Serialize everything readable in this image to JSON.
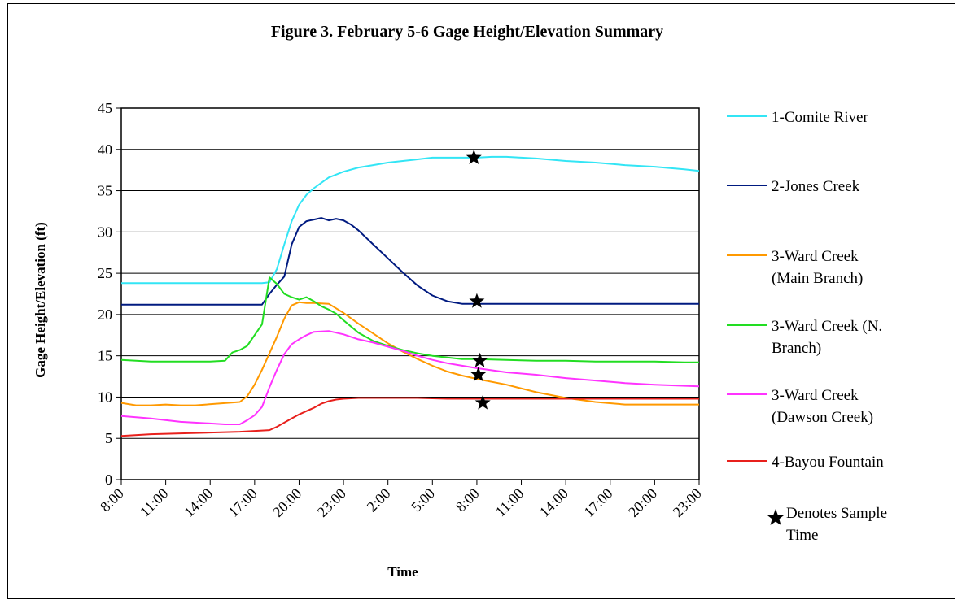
{
  "chart_data": {
    "type": "line",
    "title": "Figure 3. February 5-6 Gage Height/Elevation Summary",
    "xlabel": "Time",
    "ylabel": "Gage Height/Elevation (ft)",
    "ylim": [
      0,
      45
    ],
    "y_ticks": [
      0,
      5,
      10,
      15,
      20,
      25,
      30,
      35,
      40,
      45
    ],
    "x_tick_labels": [
      "8:00",
      "11:00",
      "14:00",
      "17:00",
      "20:00",
      "23:00",
      "2:00",
      "5:00",
      "8:00",
      "11:00",
      "14:00",
      "17:00",
      "20:00",
      "23:00"
    ],
    "x_unit": "hours from Feb 5 8:00",
    "xlim": [
      0,
      39
    ],
    "grid": "horizontal",
    "legend_position": "right",
    "series": [
      {
        "name": "1-Comite River",
        "color": "#33e5f5",
        "x": [
          0,
          9.5,
          10,
          10.5,
          11,
          11.5,
          12,
          12.5,
          13,
          14,
          15,
          16,
          17,
          18,
          19,
          20,
          21,
          22,
          23,
          24,
          25,
          26,
          27,
          28,
          30,
          32,
          34,
          36,
          38,
          39
        ],
        "y": [
          23.8,
          23.8,
          23.9,
          25.5,
          28.5,
          31.3,
          33.3,
          34.5,
          35.3,
          36.6,
          37.3,
          37.8,
          38.1,
          38.4,
          38.6,
          38.8,
          39.0,
          39.0,
          39.0,
          39.0,
          39.1,
          39.1,
          39.0,
          38.9,
          38.6,
          38.4,
          38.1,
          37.9,
          37.6,
          37.4
        ]
      },
      {
        "name": "2-Jones Creek",
        "color": "#001a80",
        "x": [
          0,
          9.5,
          10,
          10.5,
          11,
          11.5,
          12,
          12.5,
          13,
          13.5,
          14,
          14.5,
          15,
          15.5,
          16,
          17,
          18,
          19,
          20,
          21,
          22,
          23,
          24,
          25,
          30,
          39
        ],
        "y": [
          21.2,
          21.2,
          22.5,
          23.6,
          24.6,
          28.5,
          30.6,
          31.3,
          31.5,
          31.7,
          31.4,
          31.6,
          31.4,
          30.9,
          30.2,
          28.5,
          26.8,
          25.1,
          23.5,
          22.3,
          21.6,
          21.3,
          21.3,
          21.3,
          21.3,
          21.3
        ]
      },
      {
        "name": "3-Ward Creek (Main Branch)",
        "color": "#ff9900",
        "x": [
          0,
          1,
          2,
          3,
          4,
          5,
          8,
          8.5,
          9,
          9.5,
          10,
          10.5,
          11,
          11.5,
          12,
          12.5,
          13,
          14,
          15,
          16,
          17,
          18,
          19,
          20,
          21,
          22,
          23,
          24,
          26,
          28,
          30,
          32,
          34,
          36,
          39
        ],
        "y": [
          9.3,
          9.0,
          9.0,
          9.1,
          9.0,
          9.0,
          9.4,
          10.1,
          11.5,
          13.3,
          15.3,
          17.3,
          19.5,
          21.1,
          21.5,
          21.4,
          21.4,
          21.3,
          20.2,
          18.9,
          17.7,
          16.5,
          15.5,
          14.6,
          13.8,
          13.1,
          12.6,
          12.2,
          11.5,
          10.6,
          9.9,
          9.4,
          9.1,
          9.1,
          9.1
        ]
      },
      {
        "name": "3-Ward Creek (N. Branch)",
        "color": "#22dd22",
        "x": [
          0,
          2,
          4,
          6,
          7,
          7.5,
          8,
          8.5,
          9,
          9.5,
          10,
          10.5,
          11,
          11.5,
          12,
          12.5,
          13,
          13.5,
          14,
          14.5,
          15,
          16,
          17,
          18,
          19,
          20,
          21,
          22,
          23,
          24,
          26,
          28,
          30,
          32,
          34,
          36,
          38,
          39
        ],
        "y": [
          14.5,
          14.3,
          14.3,
          14.3,
          14.4,
          15.4,
          15.7,
          16.2,
          17.5,
          18.8,
          24.5,
          23.7,
          22.5,
          22.1,
          21.8,
          22.1,
          21.6,
          21.0,
          20.6,
          20.1,
          19.3,
          17.8,
          16.8,
          16.2,
          15.7,
          15.3,
          15.0,
          14.8,
          14.6,
          14.6,
          14.5,
          14.4,
          14.4,
          14.3,
          14.3,
          14.3,
          14.2,
          14.2
        ]
      },
      {
        "name": "3-Ward Creek (Dawson Creek)",
        "color": "#ff33ff",
        "x": [
          0,
          2,
          4,
          6,
          7,
          8,
          8.5,
          9,
          9.5,
          10,
          10.5,
          11,
          11.5,
          12,
          12.5,
          13,
          14,
          15,
          16,
          17,
          18,
          19,
          20,
          21,
          22,
          23,
          24,
          26,
          28,
          30,
          32,
          34,
          36,
          39
        ],
        "y": [
          7.7,
          7.4,
          7.0,
          6.8,
          6.7,
          6.7,
          7.2,
          7.8,
          8.8,
          11.2,
          13.3,
          15.2,
          16.4,
          17.0,
          17.5,
          17.9,
          18.0,
          17.6,
          17.0,
          16.6,
          16.1,
          15.6,
          15.0,
          14.5,
          14.1,
          13.8,
          13.5,
          13.0,
          12.7,
          12.3,
          12.0,
          11.7,
          11.5,
          11.3
        ]
      },
      {
        "name": "4-Bayou Fountain",
        "color": "#e8201c",
        "x": [
          0,
          2,
          4,
          6,
          8,
          10,
          10.5,
          11,
          11.5,
          12,
          12.5,
          13,
          13.5,
          14,
          14.5,
          15,
          16,
          17,
          18,
          19,
          20,
          22,
          24,
          26,
          28,
          30,
          32,
          34,
          36,
          39
        ],
        "y": [
          5.3,
          5.5,
          5.6,
          5.7,
          5.8,
          6.0,
          6.4,
          6.9,
          7.4,
          7.9,
          8.3,
          8.7,
          9.2,
          9.5,
          9.7,
          9.8,
          9.9,
          9.9,
          9.9,
          9.9,
          9.9,
          9.8,
          9.8,
          9.8,
          9.8,
          9.8,
          9.8,
          9.8,
          9.8,
          9.8
        ]
      }
    ],
    "sample_times": [
      {
        "x": 23.8,
        "y": 39.0
      },
      {
        "x": 24.0,
        "y": 21.6
      },
      {
        "x": 24.2,
        "y": 14.4
      },
      {
        "x": 24.1,
        "y": 12.7
      },
      {
        "x": 24.4,
        "y": 9.3
      }
    ],
    "legend": [
      {
        "lines": [
          "1-Comite River"
        ],
        "color": "#33e5f5"
      },
      {
        "lines": [
          "2-Jones Creek"
        ],
        "color": "#001a80"
      },
      {
        "lines": [
          "3-Ward Creek",
          "(Main Branch)"
        ],
        "color": "#ff9900"
      },
      {
        "lines": [
          "3-Ward Creek (N.",
          "Branch)"
        ],
        "color": "#22dd22"
      },
      {
        "lines": [
          "3-Ward Creek",
          "(Dawson Creek)"
        ],
        "color": "#ff33ff"
      },
      {
        "lines": [
          "4-Bayou Fountain"
        ],
        "color": "#e8201c"
      }
    ],
    "sample_legend": [
      "Denotes Sample",
      "Time"
    ]
  }
}
